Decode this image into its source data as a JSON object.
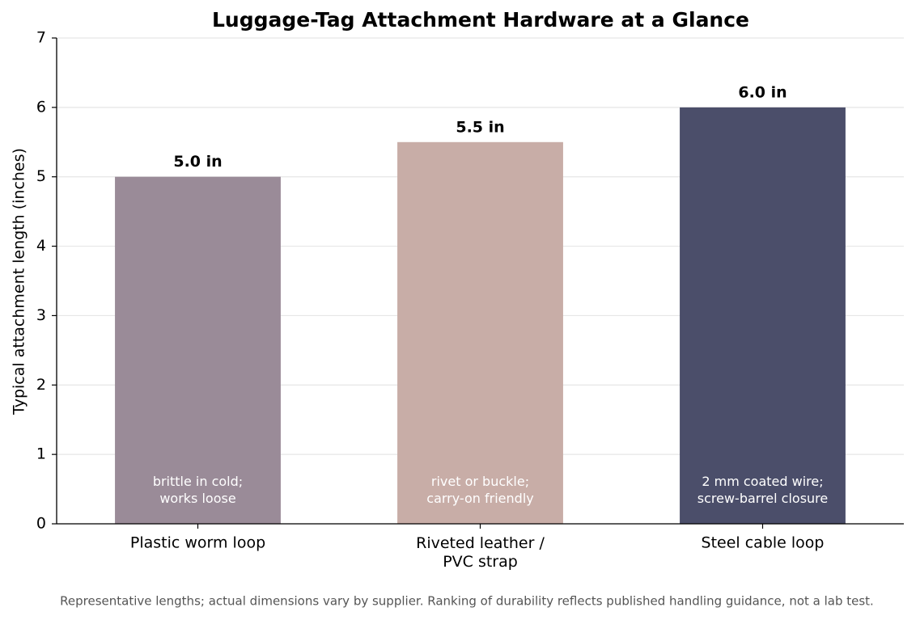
{
  "chart_data": {
    "type": "bar",
    "title": "Luggage-Tag Attachment Hardware at a Glance",
    "y_label": "Typical attachment length (inches)",
    "categories": [
      "Plastic worm loop",
      "Riveted leather /\nPVC strap",
      "Steel cable loop"
    ],
    "values": [
      5.0,
      5.5,
      6.0
    ],
    "value_labels": [
      "5.0 in",
      "5.5 in",
      "6.0 in"
    ],
    "colors": [
      "#9a8b98",
      "#c8ada7",
      "#4b4e6a"
    ],
    "annotations": [
      "brittle in cold;\nworks loose",
      "rivet or buckle;\ncarry-on friendly",
      "2 mm coated wire;\nscrew-barrel closure"
    ],
    "ylim": [
      0,
      7
    ],
    "yticks": [
      0,
      1,
      2,
      3,
      4,
      5,
      6,
      7
    ],
    "grid": true,
    "footnote": "Representative lengths; actual dimensions vary by supplier. Ranking of durability reflects published handling guidance, not a lab test."
  }
}
